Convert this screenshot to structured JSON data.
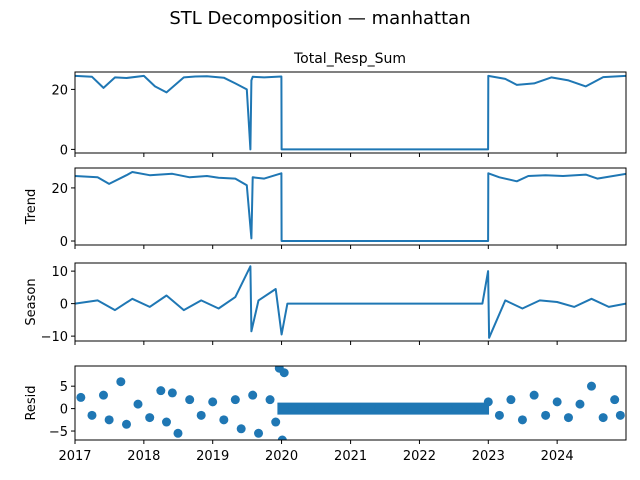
{
  "figure": {
    "suptitle": "STL Decomposition — manhattan"
  },
  "colors": {
    "series": "#1f77b4",
    "axis": "#000000",
    "background": "#ffffff"
  },
  "chart_data": [
    {
      "type": "line",
      "title": "Total_Resp_Sum",
      "ylabel": "",
      "xlabel": "",
      "xlim": [
        "2017-01-01",
        "2024-12-31"
      ],
      "ylim": [
        -1.2,
        25.8
      ],
      "yticks": [
        0,
        20
      ],
      "grid": false,
      "x": [
        "2017-01",
        "2017-04",
        "2017-06",
        "2017-08",
        "2017-10",
        "2018-01",
        "2018-03",
        "2018-05",
        "2018-08",
        "2018-10",
        "2018-12",
        "2019-03",
        "2019-05",
        "2019-07",
        "2019-07-20",
        "2019-07-25",
        "2019-08",
        "2019-10",
        "2019-12-31",
        "2020-01-01",
        "2021-06",
        "2022-12-31",
        "2023-01-01",
        "2023-04",
        "2023-06",
        "2023-09",
        "2023-12",
        "2024-03",
        "2024-06",
        "2024-09",
        "2024-12-31"
      ],
      "values": [
        24.5,
        24.2,
        20.5,
        24.0,
        23.8,
        24.5,
        21.0,
        19.0,
        24.0,
        24.3,
        24.4,
        23.9,
        22.0,
        20.0,
        0.0,
        23.0,
        24.2,
        24.0,
        24.3,
        0.0,
        0.0,
        0.0,
        24.5,
        23.5,
        21.5,
        22.0,
        24.0,
        23.0,
        21.0,
        24.1,
        24.5
      ]
    },
    {
      "type": "line",
      "title": "",
      "ylabel": "Trend",
      "xlabel": "",
      "xlim": [
        "2017-01-01",
        "2024-12-31"
      ],
      "ylim": [
        -1.5,
        27.5
      ],
      "yticks": [
        0,
        20
      ],
      "grid": false,
      "x": [
        "2017-01",
        "2017-05",
        "2017-07",
        "2017-10",
        "2017-11",
        "2018-02",
        "2018-06",
        "2018-09",
        "2018-12",
        "2019-02",
        "2019-05",
        "2019-07",
        "2019-07-25",
        "2019-08",
        "2019-10",
        "2019-12-31",
        "2020-01-01",
        "2021-06",
        "2022-12-31",
        "2023-01-01",
        "2023-03",
        "2023-06",
        "2023-08",
        "2023-11",
        "2024-02",
        "2024-06",
        "2024-08",
        "2024-12-31"
      ],
      "values": [
        24.5,
        24.0,
        21.5,
        24.8,
        26.0,
        24.8,
        25.3,
        24.0,
        24.5,
        23.8,
        23.5,
        21.0,
        1.0,
        24.0,
        23.5,
        25.5,
        0.0,
        0.0,
        0.0,
        25.5,
        24.0,
        22.5,
        24.5,
        24.8,
        24.5,
        25.0,
        23.5,
        25.3
      ]
    },
    {
      "type": "line",
      "title": "",
      "ylabel": "Season",
      "xlabel": "",
      "xlim": [
        "2017-01-01",
        "2024-12-31"
      ],
      "ylim": [
        -11.5,
        12.5
      ],
      "yticks": [
        -10,
        0,
        10
      ],
      "grid": false,
      "x": [
        "2017-01",
        "2017-05",
        "2017-08",
        "2017-11",
        "2018-02",
        "2018-05",
        "2018-08",
        "2018-11",
        "2019-02",
        "2019-05",
        "2019-07-20",
        "2019-07-25",
        "2019-09",
        "2019-12",
        "2020-01",
        "2020-02",
        "2021-06",
        "2022-12",
        "2022-12-31",
        "2023-01-05",
        "2023-04",
        "2023-07",
        "2023-10",
        "2024-01",
        "2024-04",
        "2024-07",
        "2024-10",
        "2024-12-31"
      ],
      "values": [
        0.0,
        1.0,
        -2.0,
        1.5,
        -1.0,
        2.5,
        -2.0,
        1.0,
        -1.5,
        2.0,
        11.5,
        -8.5,
        1.0,
        4.5,
        -9.5,
        0.0,
        0.0,
        0.0,
        10.0,
        -10.5,
        1.0,
        -1.5,
        1.0,
        0.5,
        -1.0,
        1.5,
        -1.0,
        0.0
      ]
    },
    {
      "type": "scatter",
      "title": "",
      "ylabel": "Resid",
      "xlabel": "",
      "xlim": [
        "2017-01-01",
        "2024-12-31"
      ],
      "ylim": [
        -7.0,
        9.5
      ],
      "yticks": [
        -5,
        0,
        5
      ],
      "xticks": [
        "2017",
        "2018",
        "2019",
        "2020",
        "2021",
        "2022",
        "2023",
        "2024"
      ],
      "grid": false,
      "x": [
        "2017-02",
        "2017-04",
        "2017-06",
        "2017-07",
        "2017-09",
        "2017-10",
        "2017-12",
        "2018-02",
        "2018-04",
        "2018-05",
        "2018-06",
        "2018-07",
        "2018-09",
        "2018-11",
        "2019-01",
        "2019-03",
        "2019-05",
        "2019-06",
        "2019-08",
        "2019-09",
        "2019-11",
        "2019-12",
        "2019-12-20",
        "2020-01-05",
        "2020-01-15",
        "2020-03",
        "2020-06",
        "2020-10",
        "2021-02",
        "2021-06",
        "2021-10",
        "2022-02",
        "2022-06",
        "2022-10",
        "2023-01",
        "2023-03",
        "2023-05",
        "2023-07",
        "2023-09",
        "2023-11",
        "2024-01",
        "2024-03",
        "2024-05",
        "2024-07",
        "2024-09",
        "2024-11",
        "2024-12"
      ],
      "values": [
        2.5,
        -1.5,
        3.0,
        -2.5,
        6.0,
        -3.5,
        1.0,
        -2.0,
        4.0,
        -3.0,
        3.5,
        -5.5,
        2.0,
        -1.5,
        1.5,
        -2.5,
        2.0,
        -4.5,
        3.0,
        -5.5,
        2.0,
        -3.0,
        9.0,
        -7.0,
        8.0,
        0.0,
        0.0,
        0.0,
        0.0,
        0.0,
        0.0,
        0.0,
        0.0,
        0.0,
        1.5,
        -1.5,
        2.0,
        -2.5,
        3.0,
        -1.5,
        1.5,
        -2.0,
        1.0,
        5.0,
        -2.0,
        2.0,
        -1.5
      ]
    }
  ]
}
